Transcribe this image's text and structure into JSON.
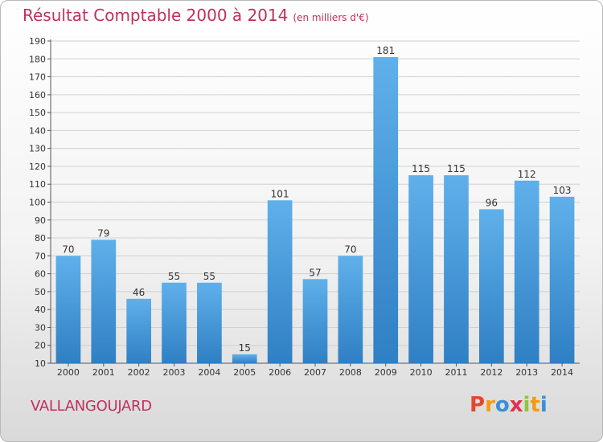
{
  "header": {
    "title": "Résultat Comptable 2000 à 2014",
    "unit": "(en milliers d'€)"
  },
  "footer": {
    "city": "VALLANGOUJARD",
    "logo_letters": [
      "P",
      "r",
      "o",
      "x",
      "i",
      "t",
      "i"
    ],
    "logo_colors": [
      "#e04a2c",
      "#f39c12",
      "#3b8fd6",
      "#e0334f",
      "#8dc63f",
      "#f39c12",
      "#3b8fd6"
    ]
  },
  "colors": {
    "title": "#c0305c",
    "bar_top": "#5fb0ea",
    "bar_bottom": "#2f7fc4",
    "grid": "#d0d0d0",
    "axis": "#555555"
  },
  "chart_data": {
    "type": "bar",
    "title": "Résultat Comptable 2000 à 2014",
    "xlabel": "",
    "ylabel": "",
    "ylim": [
      10,
      190
    ],
    "yticks": [
      10,
      20,
      30,
      40,
      50,
      60,
      70,
      80,
      90,
      100,
      110,
      120,
      130,
      140,
      150,
      160,
      170,
      180,
      190
    ],
    "categories": [
      "2000",
      "2001",
      "2002",
      "2003",
      "2004",
      "2005",
      "2006",
      "2007",
      "2008",
      "2009",
      "2010",
      "2011",
      "2012",
      "2013",
      "2014"
    ],
    "values": [
      70,
      79,
      46,
      55,
      55,
      15,
      101,
      57,
      70,
      181,
      115,
      115,
      96,
      112,
      103
    ],
    "grid": true
  }
}
